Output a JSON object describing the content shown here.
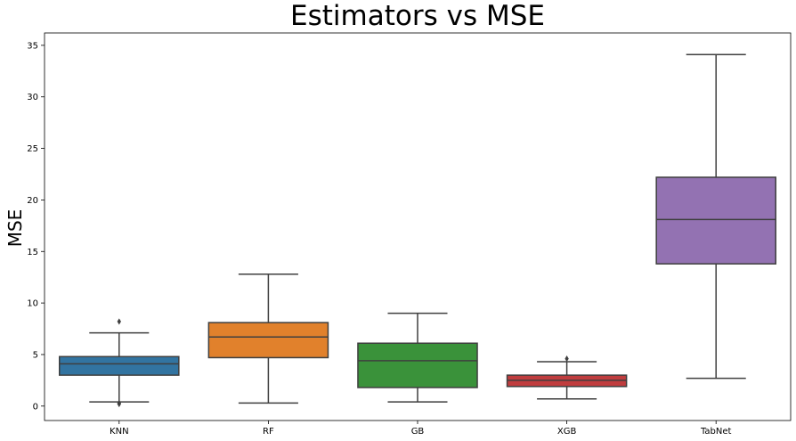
{
  "chart_data": {
    "type": "box",
    "title": "Estimators vs MSE",
    "xlabel": "",
    "ylabel": "MSE",
    "ylim": [
      -1.4,
      36.2
    ],
    "yticks": [
      0,
      5,
      10,
      15,
      20,
      25,
      30,
      35
    ],
    "grid": false,
    "categories": [
      "KNN",
      "RF",
      "GB",
      "XGB",
      "TabNet"
    ],
    "boxes": [
      {
        "name": "KNN",
        "whisker_low": 0.4,
        "q1": 3.0,
        "median": 4.1,
        "q3": 4.8,
        "whisker_high": 7.1,
        "outliers": [
          8.2,
          0.3,
          0.2
        ],
        "color": "#3274a1"
      },
      {
        "name": "RF",
        "whisker_low": 0.3,
        "q1": 4.7,
        "median": 6.7,
        "q3": 8.1,
        "whisker_high": 12.8,
        "outliers": [],
        "color": "#e1812c"
      },
      {
        "name": "GB",
        "whisker_low": 0.4,
        "q1": 1.8,
        "median": 4.4,
        "q3": 6.1,
        "whisker_high": 9.0,
        "outliers": [],
        "color": "#3a923a"
      },
      {
        "name": "XGB",
        "whisker_low": 0.7,
        "q1": 1.9,
        "median": 2.5,
        "q3": 3.0,
        "whisker_high": 4.3,
        "outliers": [
          4.6
        ],
        "color": "#c03d3e"
      },
      {
        "name": "TabNet",
        "whisker_low": 2.7,
        "q1": 13.8,
        "median": 18.1,
        "q3": 22.2,
        "whisker_high": 34.1,
        "outliers": [],
        "color": "#9372b2"
      }
    ]
  }
}
